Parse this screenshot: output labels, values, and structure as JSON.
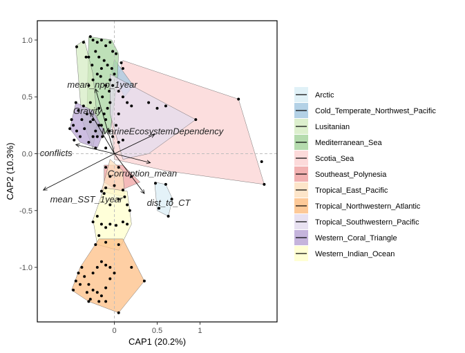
{
  "chart_data": {
    "type": "scatter",
    "subtype": "CAP ordination biplot with convex hulls and environmental vectors",
    "xlabel": "CAP1 (20.2%)",
    "ylabel": "CAP2 (10.3%)",
    "xlim": [
      -0.9,
      1.9
    ],
    "ylim": [
      -1.48,
      1.17
    ],
    "x_ticks": [
      0,
      0.5,
      1
    ],
    "x_tick_labels": [
      "0",
      "0.5",
      "1"
    ],
    "y_ticks": [
      -1.0,
      -0.5,
      0.0,
      0.5,
      1.0
    ],
    "y_tick_labels": [
      "-1.0",
      "-0.5",
      "0.0",
      "0.5",
      "1.0"
    ],
    "grid": false,
    "reference_lines": "dashed at x=0 and y=0",
    "legend_position": "right",
    "legend": [
      {
        "name": "Arctic",
        "color": "#dbeef6"
      },
      {
        "name": "Cold_Temperate_Northwest_Pacific",
        "color": "#a6c9e2"
      },
      {
        "name": "Lusitanian",
        "color": "#d6ecc4"
      },
      {
        "name": "Mediterranean_Sea",
        "color": "#a8d5a0"
      },
      {
        "name": "Scotia_Sea",
        "color": "#fbd3d3"
      },
      {
        "name": "Southeast_Polynesia",
        "color": "#f0a3a3"
      },
      {
        "name": "Tropical_East_Pacific",
        "color": "#fde0bf"
      },
      {
        "name": "Tropical_Northwestern_Atlantic",
        "color": "#fdbf86"
      },
      {
        "name": "Tropical_Southwestern_Pacific",
        "color": "#e4dcee"
      },
      {
        "name": "Western_Coral_Triangle",
        "color": "#bba7d6"
      },
      {
        "name": "Western_Indian_Ocean",
        "color": "#ffffcc"
      }
    ],
    "hulls": [
      {
        "name": "Scotia_Sea",
        "points": [
          [
            0.1,
            0.82
          ],
          [
            1.45,
            0.48
          ],
          [
            1.75,
            -0.27
          ],
          [
            0.6,
            -0.15
          ],
          [
            0.0,
            -0.05
          ],
          [
            -0.05,
            0.45
          ]
        ]
      },
      {
        "name": "Cold_Temperate_Northwest_Pacific",
        "points": [
          [
            0.0,
            0.83
          ],
          [
            0.22,
            0.6
          ],
          [
            0.12,
            0.5
          ],
          [
            -0.03,
            0.72
          ]
        ]
      },
      {
        "name": "Mediterranean_Sea",
        "points": [
          [
            -0.3,
            1.03
          ],
          [
            -0.03,
            1.0
          ],
          [
            0.05,
            0.88
          ],
          [
            0.03,
            0.6
          ],
          [
            -0.05,
            0.2
          ],
          [
            -0.2,
            0.15
          ],
          [
            -0.32,
            0.4
          ]
        ]
      },
      {
        "name": "Lusitanian",
        "points": [
          [
            -0.45,
            0.95
          ],
          [
            -0.35,
            1.0
          ],
          [
            -0.25,
            0.7
          ],
          [
            -0.2,
            0.3
          ],
          [
            -0.25,
            0.05
          ],
          [
            -0.38,
            0.3
          ]
        ]
      },
      {
        "name": "Tropical_Southwestern_Pacific",
        "points": [
          [
            -0.05,
            0.7
          ],
          [
            0.95,
            0.3
          ],
          [
            0.4,
            0.0
          ],
          [
            0.1,
            -0.05
          ],
          [
            -0.05,
            0.35
          ]
        ]
      },
      {
        "name": "Western_Coral_Triangle",
        "points": [
          [
            -0.45,
            0.45
          ],
          [
            -0.25,
            0.38
          ],
          [
            -0.12,
            0.2
          ],
          [
            -0.2,
            0.05
          ],
          [
            -0.4,
            0.1
          ],
          [
            -0.52,
            0.22
          ]
        ]
      },
      {
        "name": "Arctic",
        "points": [
          [
            0.47,
            -0.25
          ],
          [
            0.6,
            -0.27
          ],
          [
            0.68,
            -0.4
          ],
          [
            0.63,
            -0.55
          ],
          [
            0.5,
            -0.5
          ]
        ]
      },
      {
        "name": "Southeast_Polynesia",
        "points": [
          [
            -0.12,
            -0.1
          ],
          [
            0.1,
            -0.1
          ],
          [
            0.3,
            -0.25
          ],
          [
            0.05,
            -0.33
          ],
          [
            -0.12,
            -0.25
          ]
        ]
      },
      {
        "name": "Tropical_East_Pacific",
        "points": [
          [
            -0.05,
            -0.05
          ],
          [
            0.1,
            -0.15
          ],
          [
            0.12,
            -0.38
          ],
          [
            -0.15,
            -0.33
          ]
        ]
      },
      {
        "name": "Western_Indian_Ocean",
        "points": [
          [
            -0.12,
            -0.3
          ],
          [
            0.15,
            -0.33
          ],
          [
            0.2,
            -0.62
          ],
          [
            0.05,
            -0.85
          ],
          [
            -0.2,
            -0.8
          ],
          [
            -0.25,
            -0.58
          ]
        ]
      },
      {
        "name": "Tropical_Northwestern_Atlantic",
        "points": [
          [
            -0.18,
            -0.75
          ],
          [
            0.1,
            -0.75
          ],
          [
            0.35,
            -1.12
          ],
          [
            0.05,
            -1.4
          ],
          [
            -0.3,
            -1.3
          ],
          [
            -0.5,
            -1.2
          ],
          [
            -0.4,
            -1.0
          ]
        ]
      }
    ],
    "points": [
      [
        -0.28,
        1.03
      ],
      [
        -0.25,
        1.0
      ],
      [
        -0.2,
        0.98
      ],
      [
        -0.15,
        1.0
      ],
      [
        -0.1,
        0.95
      ],
      [
        -0.05,
        0.98
      ],
      [
        -0.02,
        0.9
      ],
      [
        0.02,
        0.88
      ],
      [
        -0.22,
        0.9
      ],
      [
        -0.18,
        0.85
      ],
      [
        -0.12,
        0.82
      ],
      [
        -0.08,
        0.78
      ],
      [
        -0.03,
        0.75
      ],
      [
        0.0,
        0.7
      ],
      [
        -0.05,
        0.65
      ],
      [
        -0.15,
        0.75
      ],
      [
        -0.2,
        0.7
      ],
      [
        -0.25,
        0.65
      ],
      [
        -0.1,
        0.6
      ],
      [
        -0.06,
        0.55
      ],
      [
        -0.02,
        0.6
      ],
      [
        0.05,
        0.55
      ],
      [
        0.08,
        0.8
      ],
      [
        0.1,
        0.75
      ],
      [
        -0.3,
        0.85
      ],
      [
        -0.26,
        0.78
      ],
      [
        -0.16,
        0.68
      ],
      [
        -0.44,
        0.94
      ],
      [
        -0.36,
        0.98
      ],
      [
        -0.33,
        0.85
      ],
      [
        -0.3,
        0.6
      ],
      [
        -0.28,
        0.45
      ],
      [
        -0.25,
        0.3
      ],
      [
        -0.22,
        0.2
      ],
      [
        -0.2,
        0.15
      ],
      [
        -0.15,
        0.25
      ],
      [
        -0.12,
        0.35
      ],
      [
        -0.08,
        0.4
      ],
      [
        -0.05,
        0.45
      ],
      [
        -0.1,
        0.3
      ],
      [
        -0.06,
        0.2
      ],
      [
        -0.02,
        0.15
      ],
      [
        0.02,
        0.25
      ],
      [
        0.05,
        0.35
      ],
      [
        -0.18,
        0.4
      ],
      [
        -0.14,
        0.5
      ],
      [
        0.1,
        0.5
      ],
      [
        0.15,
        0.45
      ],
      [
        0.2,
        0.42
      ],
      [
        0.4,
        0.45
      ],
      [
        0.5,
        0.4
      ],
      [
        0.6,
        0.42
      ],
      [
        0.95,
        0.3
      ],
      [
        1.45,
        0.48
      ],
      [
        1.72,
        -0.07
      ],
      [
        1.75,
        -0.27
      ],
      [
        -0.45,
        0.45
      ],
      [
        -0.42,
        0.38
      ],
      [
        -0.38,
        0.3
      ],
      [
        -0.48,
        0.25
      ],
      [
        -0.44,
        0.2
      ],
      [
        -0.4,
        0.15
      ],
      [
        -0.35,
        0.22
      ],
      [
        -0.32,
        0.35
      ],
      [
        -0.28,
        0.28
      ],
      [
        -0.3,
        0.1
      ],
      [
        -0.25,
        0.15
      ],
      [
        -0.5,
        0.3
      ],
      [
        -0.52,
        0.22
      ],
      [
        -0.47,
        0.12
      ],
      [
        -0.36,
        0.42
      ],
      [
        -0.22,
        0.05
      ],
      [
        -0.18,
        0.25
      ],
      [
        -0.14,
        0.15
      ],
      [
        -0.1,
        0.05
      ],
      [
        0.1,
        0.12
      ],
      [
        0.05,
        0.1
      ],
      [
        0.48,
        -0.26
      ],
      [
        0.6,
        -0.27
      ],
      [
        0.67,
        -0.4
      ],
      [
        0.63,
        -0.55
      ],
      [
        0.52,
        -0.48
      ],
      [
        -0.1,
        -0.12
      ],
      [
        0.05,
        -0.12
      ],
      [
        0.2,
        -0.2
      ],
      [
        -0.05,
        -0.2
      ],
      [
        -0.1,
        -0.3
      ],
      [
        0.0,
        -0.28
      ],
      [
        0.1,
        -0.32
      ],
      [
        -0.12,
        -0.35
      ],
      [
        -0.15,
        -0.33
      ],
      [
        0.12,
        -0.38
      ],
      [
        0.05,
        -0.4
      ],
      [
        -0.05,
        -0.45
      ],
      [
        0.15,
        -0.45
      ],
      [
        0.18,
        -0.5
      ],
      [
        -0.2,
        -0.55
      ],
      [
        -0.15,
        -0.62
      ],
      [
        -0.1,
        -0.65
      ],
      [
        -0.05,
        -0.62
      ],
      [
        0.02,
        -0.63
      ],
      [
        0.1,
        -0.6
      ],
      [
        -0.25,
        -0.6
      ],
      [
        -0.18,
        -0.72
      ],
      [
        -0.1,
        -0.78
      ],
      [
        0.05,
        -0.8
      ],
      [
        0.15,
        -0.62
      ],
      [
        -0.22,
        -0.8
      ],
      [
        -0.3,
        -1.3
      ],
      [
        -0.48,
        -1.2
      ],
      [
        -0.45,
        -1.12
      ],
      [
        -0.42,
        -1.05
      ],
      [
        -0.38,
        -1.0
      ],
      [
        -0.35,
        -1.08
      ],
      [
        -0.3,
        -1.15
      ],
      [
        -0.25,
        -1.2
      ],
      [
        -0.2,
        -1.22
      ],
      [
        -0.15,
        -1.25
      ],
      [
        -0.1,
        -1.18
      ],
      [
        -0.05,
        -1.1
      ],
      [
        0.0,
        -1.05
      ],
      [
        -0.05,
        -1.0
      ],
      [
        -0.1,
        -0.98
      ],
      [
        -0.15,
        -0.95
      ],
      [
        -0.2,
        -1.0
      ],
      [
        -0.25,
        -1.05
      ],
      [
        -0.32,
        -1.22
      ],
      [
        -0.4,
        -1.15
      ],
      [
        -0.1,
        -1.3
      ],
      [
        0.05,
        -1.4
      ],
      [
        0.35,
        -1.12
      ],
      [
        0.2,
        -1.0
      ],
      [
        -0.28,
        -1.28
      ],
      [
        -0.18,
        -1.3
      ]
    ],
    "vectors": [
      {
        "label": "mean_npp_1year",
        "x": -0.22,
        "y": 0.57
      },
      {
        "label": "Gravity",
        "x": -0.28,
        "y": 0.36
      },
      {
        "label": "MarineEcosystemDependency",
        "x": 0.47,
        "y": 0.17
      },
      {
        "label": "conflicts",
        "x": -0.45,
        "y": 0.08
      },
      {
        "label": "Corruption_mean",
        "x": 0.42,
        "y": -0.08
      },
      {
        "label": "mean_SST_1year",
        "x": -0.83,
        "y": -0.32
      },
      {
        "label": "dist_to_CT",
        "x": 0.35,
        "y": -0.35
      }
    ],
    "vector_labels": [
      {
        "text": "mean_npp_1year",
        "x": -0.55,
        "y": 0.58
      },
      {
        "text": "Gravity",
        "x": -0.48,
        "y": 0.35
      },
      {
        "text": "MarineEcosystemDependency",
        "x": -0.15,
        "y": 0.17
      },
      {
        "text": "conflicts",
        "x": -0.87,
        "y": -0.02
      },
      {
        "text": "Corruption_mean",
        "x": -0.08,
        "y": -0.2
      },
      {
        "text": "mean_SST_1year",
        "x": -0.75,
        "y": -0.43
      },
      {
        "text": "dist_to_CT",
        "x": 0.38,
        "y": -0.46
      }
    ]
  }
}
